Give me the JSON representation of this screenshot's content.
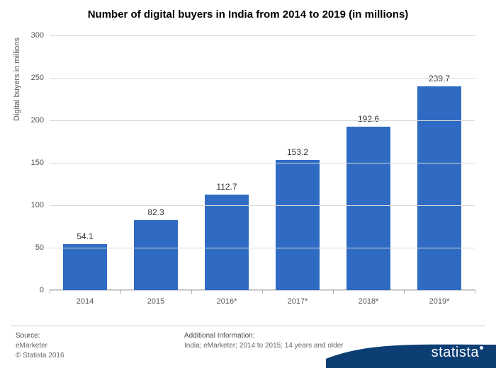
{
  "chart": {
    "type": "bar",
    "title": "Number of digital buyers in India from 2014 to 2019 (in millions)",
    "title_fontsize": 15,
    "ylabel": "Digital buyers in millions",
    "categories": [
      "2014",
      "2015",
      "2016*",
      "2017*",
      "2018*",
      "2019*"
    ],
    "values": [
      54.1,
      82.3,
      112.7,
      153.2,
      192.6,
      239.7
    ],
    "bar_color": "#2f6bc2",
    "ylim": [
      0,
      300
    ],
    "ytick_step": 50,
    "yticks": [
      0,
      50,
      100,
      150,
      200,
      250,
      300
    ],
    "grid_color": "#d9d9d9",
    "background_color": "#ffffff",
    "label_fontsize": 11,
    "bar_width": 0.62
  },
  "footer": {
    "source_label": "Source:",
    "source_text": "eMarketer",
    "copyright": "© Statista 2016",
    "additional_label": "Additional Information:",
    "additional_text": "India; eMarketer; 2014 to 2015; 14 years and older"
  },
  "branding": {
    "logo_text": "statista",
    "swoosh_color": "#0d3e73"
  }
}
